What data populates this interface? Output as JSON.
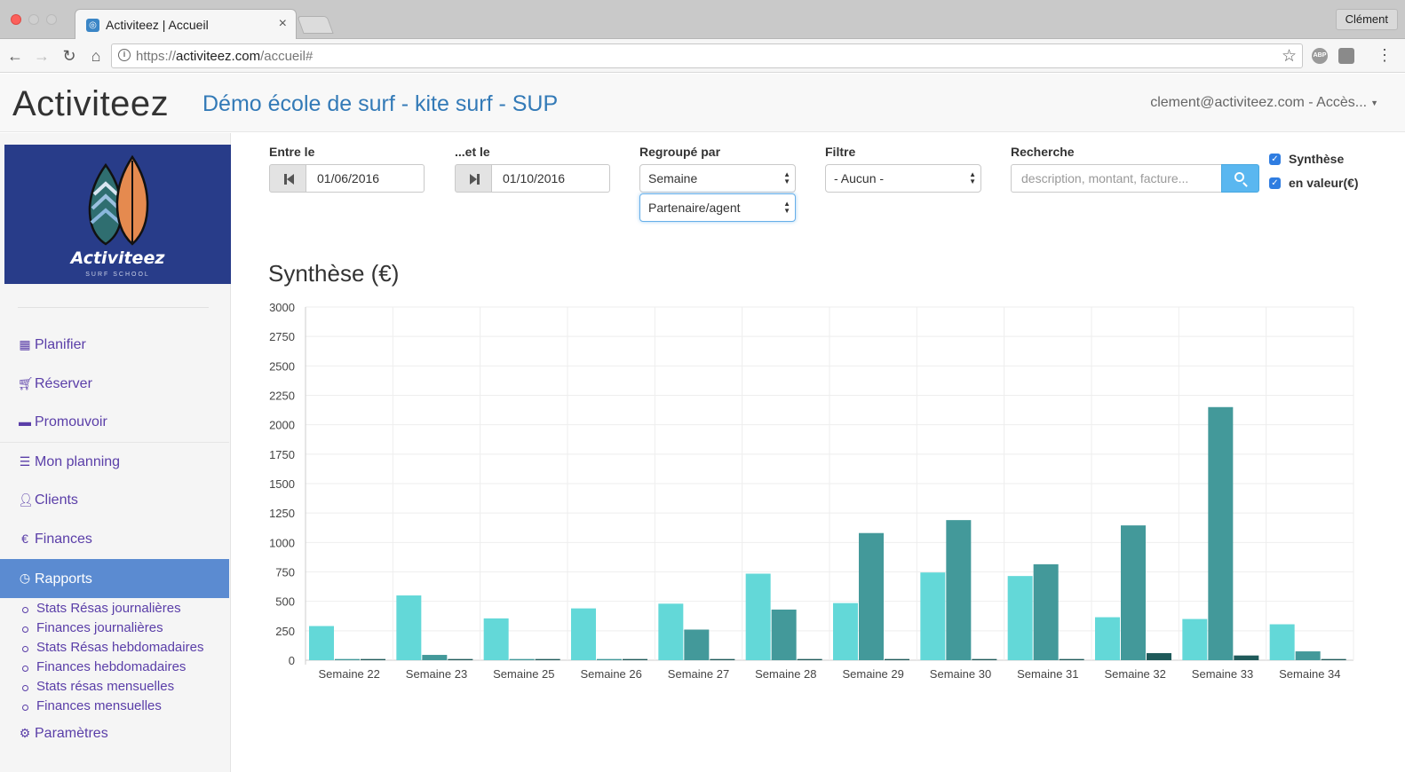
{
  "browser": {
    "tab_title": "Activiteez | Accueil",
    "tab_close": "×",
    "profile": "Clément",
    "url_scheme": "https://",
    "url_host": "activiteez.com",
    "url_path": "/accueil#",
    "ext_abp": "ABP"
  },
  "header": {
    "brand": "Activiteez",
    "school": "Démo école de surf - kite surf - SUP",
    "user": "clement@activiteez.com - Accès..."
  },
  "sidebar": {
    "logo_text": "Activiteez",
    "logo_sub": "SURF SCHOOL",
    "items": [
      {
        "label": "Planifier",
        "icon": "calendar-icon"
      },
      {
        "label": "Réserver",
        "icon": "cart-icon"
      },
      {
        "label": "Promouvoir",
        "icon": "comment-icon"
      },
      {
        "label": "Mon planning",
        "icon": "tasks-icon"
      },
      {
        "label": "Clients",
        "icon": "user-icon"
      },
      {
        "label": "Finances",
        "icon": "euro-icon"
      },
      {
        "label": "Rapports",
        "icon": "clock-icon"
      }
    ],
    "sub_items": [
      "Stats Résas journalières",
      "Finances journalières",
      "Stats Résas hebdomadaires",
      "Finances hebdomadaires",
      "Stats résas mensuelles",
      "Finances mensuelles"
    ],
    "settings": {
      "label": "Paramètres",
      "icon": "gear-icon"
    }
  },
  "filters": {
    "from_label": "Entre le",
    "from_value": "01/06/2016",
    "to_label": "...et le",
    "to_value": "01/10/2016",
    "group_label": "Regroupé par",
    "group_value": "Semaine",
    "group2_value": "Partenaire/agent",
    "filter_label": "Filtre",
    "filter_value": "- Aucun -",
    "search_label": "Recherche",
    "search_placeholder": "description, montant, facture...",
    "synthese_label": "Synthèse",
    "valeur_label": "en valeur(€)"
  },
  "chart_title": "Synthèse (€)",
  "colors": {
    "series1": "#63d8d8",
    "series2": "#43999a",
    "series3": "#1f5a5a",
    "grid": "#eeeeee",
    "axis": "#cccccc",
    "accent": "#5b8bd1",
    "link": "#5a3ea8"
  },
  "chart_data": {
    "type": "bar",
    "title": "Synthèse (€)",
    "xlabel": "",
    "ylabel": "",
    "ylim": [
      0,
      3000
    ],
    "yticks": [
      0,
      250,
      500,
      750,
      1000,
      1250,
      1500,
      1750,
      2000,
      2250,
      2500,
      2750,
      3000
    ],
    "grid": true,
    "categories": [
      "Semaine 22",
      "Semaine 23",
      "Semaine 25",
      "Semaine 26",
      "Semaine 27",
      "Semaine 28",
      "Semaine 29",
      "Semaine 30",
      "Semaine 31",
      "Semaine 32",
      "Semaine 33",
      "Semaine 34"
    ],
    "series": [
      {
        "values": [
          290,
          550,
          355,
          440,
          480,
          735,
          485,
          745,
          715,
          365,
          350,
          305
        ]
      },
      {
        "values": [
          10,
          45,
          10,
          10,
          260,
          430,
          1080,
          1190,
          815,
          1145,
          2150,
          75
        ]
      },
      {
        "values": [
          10,
          10,
          10,
          10,
          10,
          10,
          10,
          10,
          10,
          60,
          40,
          10
        ]
      }
    ]
  }
}
